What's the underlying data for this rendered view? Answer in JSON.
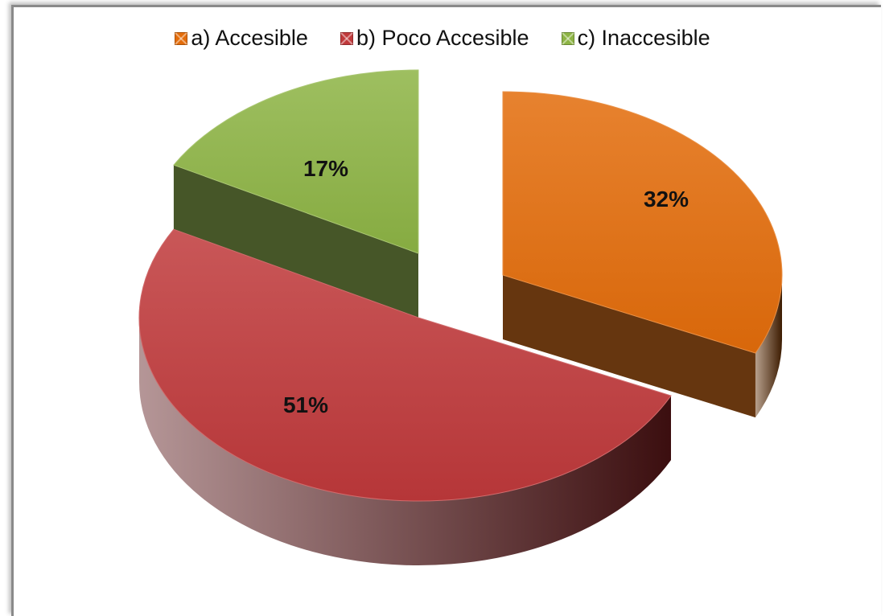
{
  "chart_data": {
    "type": "pie",
    "style": "3d-exploded",
    "title": "",
    "legend_position": "top",
    "slices": [
      {
        "label": "a) Accesible",
        "value": 32,
        "display": "32%",
        "color": "#E36C0A",
        "side_color": "#5E2B02"
      },
      {
        "label": "b) Poco Accesible",
        "value": 51,
        "display": "51%",
        "color": "#C0393B",
        "side_color": "#5A1517"
      },
      {
        "label": "c) Inaccesible",
        "value": 17,
        "display": "17%",
        "color": "#8DB444",
        "side_color": "#3C4D1D"
      }
    ]
  }
}
